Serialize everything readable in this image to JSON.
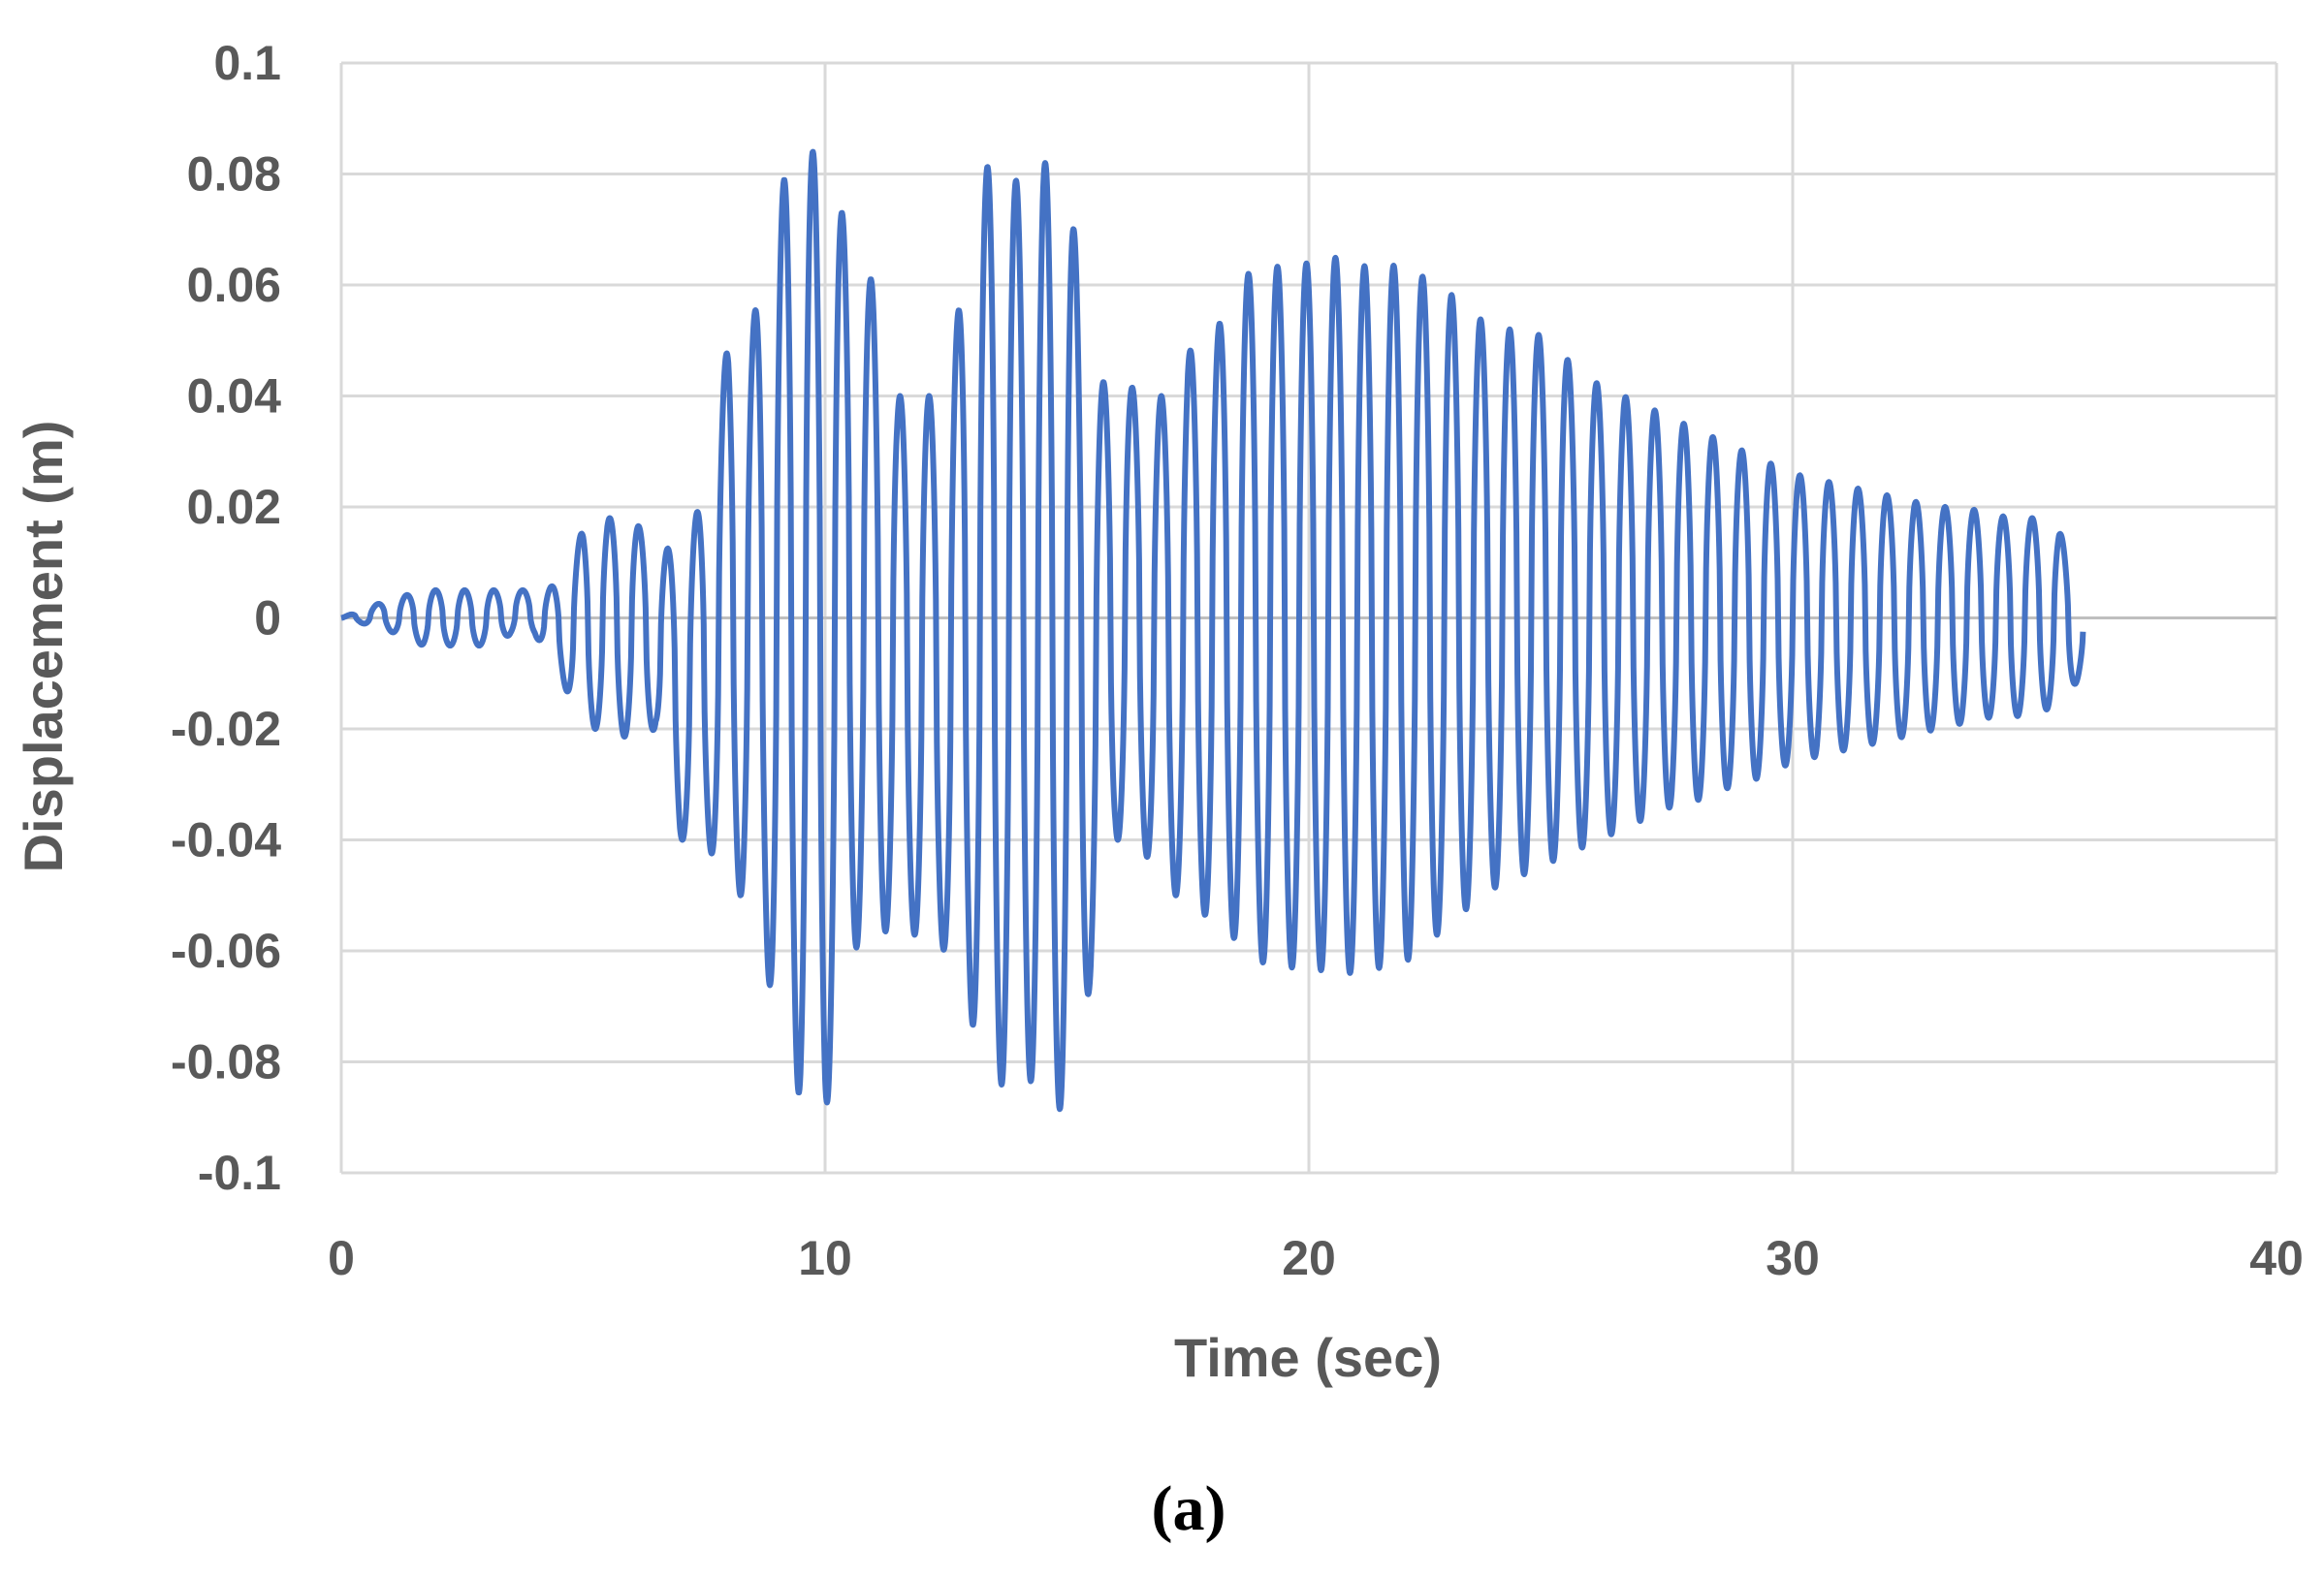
{
  "chart_data": {
    "type": "line",
    "title": "",
    "xlabel": "Time (sec)",
    "ylabel": "Displacement (m)",
    "caption": "(a)",
    "xlim": [
      0,
      40
    ],
    "ylim": [
      -0.1,
      0.1
    ],
    "x_ticks": [
      0,
      10,
      20,
      30,
      40
    ],
    "y_ticks": [
      0.1,
      0.08,
      0.06,
      0.04,
      0.02,
      0,
      -0.02,
      -0.04,
      -0.06,
      -0.08,
      -0.1
    ],
    "x_tick_labels": [
      "0",
      "10",
      "20",
      "30",
      "40"
    ],
    "y_tick_labels": [
      "0.1",
      "0.08",
      "0.06",
      "0.04",
      "0.02",
      "0",
      "-0.02",
      "-0.04",
      "-0.06",
      "-0.08",
      "-0.1"
    ],
    "grid": true,
    "legend": "none",
    "series": [
      {
        "color": "#4472C4",
        "dominant_period_sec": 0.6,
        "x": [
          0,
          0.9,
          1.7,
          2.5,
          3.0,
          3.5,
          4.0,
          4.5,
          5.0,
          5.5,
          6.0,
          6.5,
          7.0,
          7.5,
          8.0,
          8.5,
          9.0,
          9.5,
          10.0,
          10.5,
          11.0,
          11.5,
          12.0,
          12.5,
          13.0,
          13.5,
          14.0,
          14.5,
          15.0,
          15.5,
          16.0,
          16.5,
          17.0,
          17.5,
          18.0,
          18.5,
          19.0,
          19.5,
          20.0,
          20.5,
          21.0,
          21.5,
          22.0,
          22.5,
          23.0,
          23.5,
          24.0,
          24.5,
          25.0,
          25.5,
          26.0,
          26.5,
          27.0,
          27.5,
          28.0,
          28.5,
          29.0,
          29.5,
          30.0,
          30.5,
          31.0,
          31.5,
          32.0,
          32.5,
          33.0,
          33.5,
          34.0,
          34.5,
          35.0,
          35.5,
          36.0
        ],
        "upper": [
          0.0,
          0.003,
          0.005,
          0.005,
          0.005,
          0.005,
          0.005,
          0.006,
          0.016,
          0.018,
          0.018,
          0.013,
          0.012,
          0.022,
          0.05,
          0.053,
          0.075,
          0.088,
          0.08,
          0.07,
          0.06,
          0.04,
          0.04,
          0.04,
          0.07,
          0.086,
          0.078,
          0.082,
          0.082,
          0.04,
          0.045,
          0.04,
          0.04,
          0.048,
          0.05,
          0.06,
          0.064,
          0.063,
          0.064,
          0.065,
          0.064,
          0.062,
          0.065,
          0.06,
          0.058,
          0.054,
          0.052,
          0.052,
          0.05,
          0.045,
          0.042,
          0.04,
          0.038,
          0.036,
          0.034,
          0.032,
          0.03,
          0.028,
          0.026,
          0.025,
          0.024,
          0.023,
          0.022,
          0.021,
          0.02,
          0.02,
          0.019,
          0.018,
          0.018,
          0.016,
          0.005
        ],
        "lower": [
          0.0,
          -0.002,
          -0.005,
          -0.005,
          -0.005,
          -0.003,
          -0.003,
          -0.01,
          -0.02,
          -0.02,
          -0.022,
          -0.02,
          -0.04,
          -0.04,
          -0.048,
          -0.052,
          -0.072,
          -0.087,
          -0.09,
          -0.06,
          -0.058,
          -0.055,
          -0.058,
          -0.06,
          -0.072,
          -0.085,
          -0.082,
          -0.085,
          -0.09,
          -0.065,
          -0.04,
          -0.04,
          -0.05,
          -0.05,
          -0.055,
          -0.058,
          -0.062,
          -0.063,
          -0.063,
          -0.064,
          -0.064,
          -0.063,
          -0.062,
          -0.058,
          -0.055,
          -0.05,
          -0.048,
          -0.046,
          -0.044,
          -0.042,
          -0.04,
          -0.038,
          -0.036,
          -0.034,
          -0.033,
          -0.031,
          -0.03,
          -0.028,
          -0.026,
          -0.025,
          -0.024,
          -0.023,
          -0.022,
          -0.021,
          -0.02,
          -0.019,
          -0.018,
          -0.018,
          -0.017,
          -0.016,
          -0.01
        ]
      }
    ]
  }
}
